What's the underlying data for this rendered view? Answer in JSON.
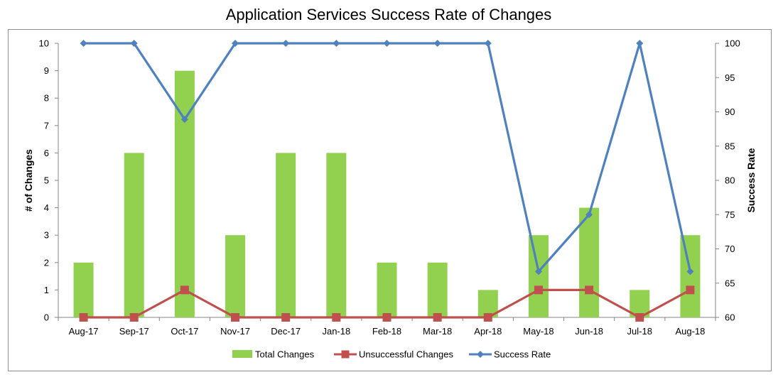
{
  "chart_data": {
    "type": "bar",
    "title": "Application Services Success Rate of Changes",
    "categories": [
      "Aug-17",
      "Sep-17",
      "Oct-17",
      "Nov-17",
      "Dec-17",
      "Jan-18",
      "Feb-18",
      "Mar-18",
      "Apr-18",
      "May-18",
      "Jun-18",
      "Jul-18",
      "Aug-18"
    ],
    "ylabel": "# of Changes",
    "ylabel_right": "Success Rate",
    "ylim": [
      0,
      10
    ],
    "ylim_right": [
      60,
      100
    ],
    "yticks": [
      0,
      1,
      2,
      3,
      4,
      5,
      6,
      7,
      8,
      9,
      10
    ],
    "yticks_right": [
      60,
      65,
      70,
      75,
      80,
      85,
      90,
      95,
      100
    ],
    "grid": false,
    "legend_position": "bottom",
    "series": [
      {
        "name": "Total Changes",
        "type": "bar",
        "axis": "left",
        "color": "#92d050",
        "values": [
          2,
          6,
          9,
          3,
          6,
          6,
          2,
          2,
          1,
          3,
          4,
          1,
          3
        ]
      },
      {
        "name": "Unsuccessful Changes",
        "type": "line",
        "axis": "left",
        "color": "#c0504d",
        "marker": "square",
        "values": [
          0,
          0,
          1,
          0,
          0,
          0,
          0,
          0,
          0,
          1,
          1,
          0,
          1
        ]
      },
      {
        "name": "Success Rate",
        "type": "line",
        "axis": "right",
        "color": "#4f81bd",
        "marker": "diamond",
        "values": [
          100,
          100,
          88.9,
          100,
          100,
          100,
          100,
          100,
          100,
          66.7,
          75,
          100,
          66.7
        ]
      }
    ]
  }
}
